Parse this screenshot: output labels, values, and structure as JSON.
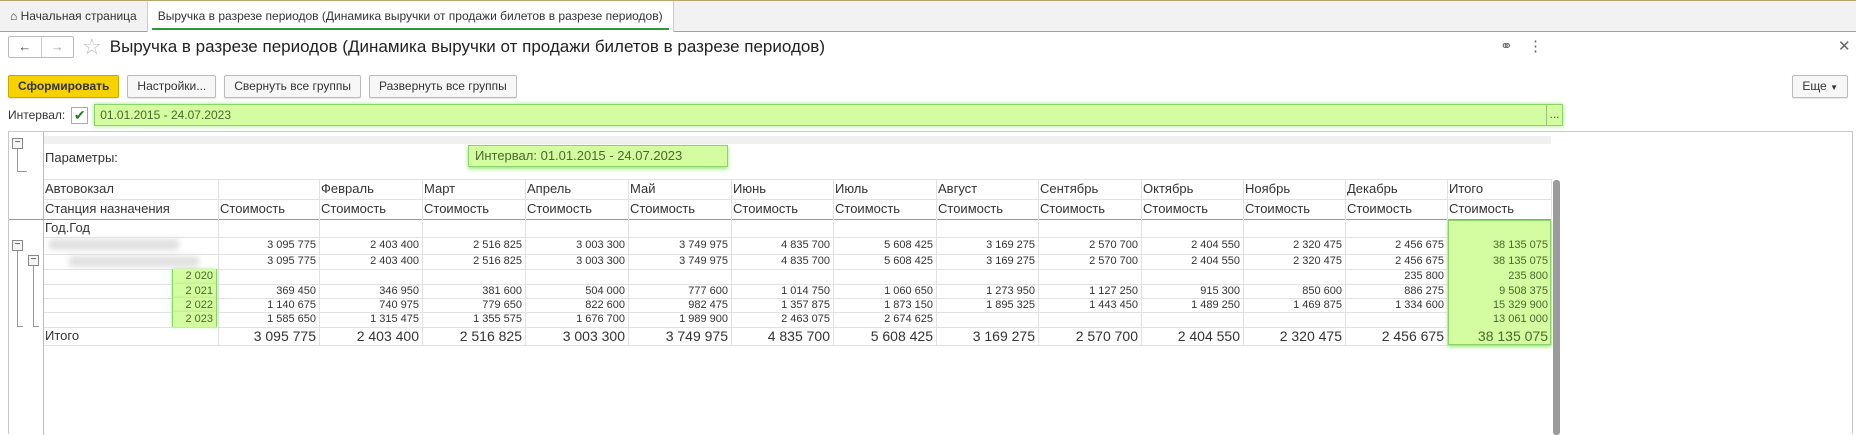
{
  "tabs": [
    {
      "label": "Начальная страница",
      "icon": "home-icon"
    },
    {
      "label": "Выручка в разрезе периодов (Динамика выручки от продажи билетов в разрезе периодов)",
      "active": true
    }
  ],
  "window": {
    "title": "Выручка в разрезе периодов (Динамика выручки от продажи билетов в разрезе периодов)"
  },
  "toolbar": {
    "generate": "Сформировать",
    "settings": "Настройки...",
    "collapse": "Свернуть все группы",
    "expand": "Развернуть все группы",
    "more": "Еще"
  },
  "interval": {
    "label": "Интервал:",
    "checked": true,
    "value": "01.01.2015 - 24.07.2023",
    "select": "..."
  },
  "colors": {
    "accent": "#f6d200",
    "highlight": "#d4fca0",
    "tab_underline": "#2a9a3a"
  },
  "report": {
    "params_label": "Параметры:",
    "params_value": "Интервал: 01.01.2015 - 24.07.2023",
    "header_row1": [
      "Автовокзал",
      "",
      "Февраль",
      "Март",
      "Апрель",
      "Май",
      "Июнь",
      "Июль",
      "Август",
      "Сентябрь",
      "Октябрь",
      "Ноябрь",
      "Декабрь",
      "Итого"
    ],
    "header_row2": [
      "Станция назначения",
      "Стоимость",
      "Стоимость",
      "Стоимость",
      "Стоимость",
      "Стоимость",
      "Стоимость",
      "Стоимость",
      "Стоимость",
      "Стоимость",
      "Стоимость",
      "Стоимость",
      "Стоимость",
      "Стоимость"
    ],
    "group_label": "Год.Год",
    "rows": [
      {
        "label": "",
        "values": [
          "3 095 775",
          "2 403 400",
          "2 516 825",
          "3 003 300",
          "3 749 975",
          "4 835 700",
          "5 608 425",
          "3 169 275",
          "2 570 700",
          "2 404 550",
          "2 320 475",
          "2 456 675",
          "38 135 075"
        ]
      },
      {
        "label": "",
        "values": [
          "3 095 775",
          "2 403 400",
          "2 516 825",
          "3 003 300",
          "3 749 975",
          "4 835 700",
          "5 608 425",
          "3 169 275",
          "2 570 700",
          "2 404 550",
          "2 320 475",
          "2 456 675",
          "38 135 075"
        ]
      },
      {
        "label": "2 020",
        "values": [
          "",
          "",
          "",
          "",
          "",
          "",
          "",
          "",
          "",
          "",
          "",
          "235 800",
          "235 800"
        ]
      },
      {
        "label": "2 021",
        "values": [
          "369 450",
          "346 950",
          "381 600",
          "504 000",
          "777 600",
          "1 014 750",
          "1 060 650",
          "1 273 950",
          "1 127 250",
          "915 300",
          "850 600",
          "886 275",
          "9 508 375"
        ]
      },
      {
        "label": "2 022",
        "values": [
          "1 140 675",
          "740 975",
          "779 650",
          "822 600",
          "982 475",
          "1 357 875",
          "1 873 150",
          "1 895 325",
          "1 443 450",
          "1 489 250",
          "1 469 875",
          "1 334 600",
          "15 329 900"
        ]
      },
      {
        "label": "2 023",
        "values": [
          "1 585 650",
          "1 315 475",
          "1 355 575",
          "1 676 700",
          "1 989 900",
          "2 463 075",
          "2 674 625",
          "",
          "",
          "",
          "",
          "",
          "13 061 000"
        ]
      }
    ],
    "total": {
      "label": "Итого",
      "values": [
        "3 095 775",
        "2 403 400",
        "2 516 825",
        "3 003 300",
        "3 749 975",
        "4 835 700",
        "5 608 425",
        "3 169 275",
        "2 570 700",
        "2 404 550",
        "2 320 475",
        "2 456 675",
        "38 135 075"
      ]
    }
  }
}
